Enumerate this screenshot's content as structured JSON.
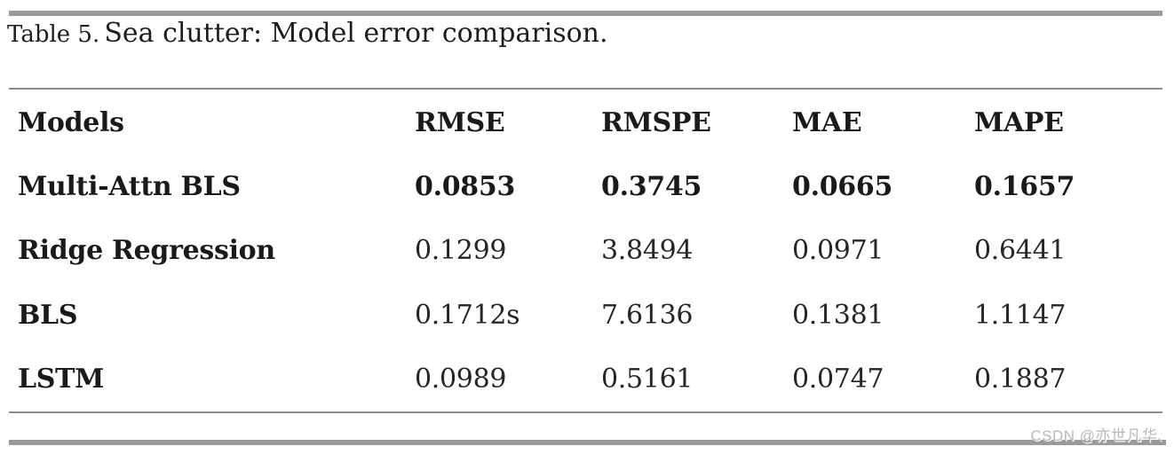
{
  "caption": {
    "label": "Table 5.",
    "title": "Sea clutter: Model error comparison."
  },
  "table": {
    "columns": [
      "Models",
      "RMSE",
      "RMSPE",
      "MAE",
      "MAPE"
    ],
    "rows": [
      {
        "model": "Multi-Attn BLS",
        "rmse": "0.0853",
        "rmspe": "0.3745",
        "mae": "0.0665",
        "mape": "0.1657",
        "emphasis": "bold"
      },
      {
        "model": "Ridge Regression",
        "rmse": "0.1299",
        "rmspe": "3.8494",
        "mae": "0.0971",
        "mape": "0.6441",
        "emphasis": "normal"
      },
      {
        "model": "BLS",
        "rmse": "0.1712s",
        "rmspe": "7.6136",
        "mae": "0.1381",
        "mape": "1.1147",
        "emphasis": "normal"
      },
      {
        "model": "LSTM",
        "rmse": "0.0989",
        "rmspe": "0.5161",
        "mae": "0.0747",
        "mape": "0.1887",
        "emphasis": "normal"
      }
    ]
  },
  "watermark": {
    "text": "CSDN @亦世凡华",
    "trailing_mark": "、"
  },
  "colors": {
    "bar_gray": "#9a9a9a",
    "rule_gray": "#8c8c8c",
    "text_dark": "#1a1a1a",
    "watermark_gray": "#b9b9b9",
    "background": "#ffffff"
  }
}
